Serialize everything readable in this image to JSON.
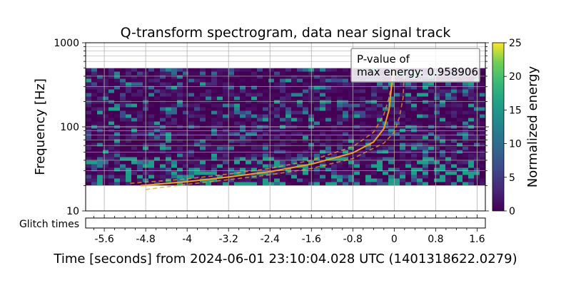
{
  "chart_data": {
    "type": "heatmap",
    "title": "Q-transform spectrogram, data near signal track",
    "xlabel": "Time [seconds] from 2024-06-01 23:10:04.028 UTC (1401318622.0279)",
    "ylabel": "Frequency [Hz]",
    "xlim": [
      -5.96,
      1.76
    ],
    "ylim": [
      10,
      1000
    ],
    "y_scale": "log",
    "grid": true,
    "x_ticks": [
      -5.6,
      -4.8,
      -4,
      -3.2,
      -2.4,
      -1.6,
      -0.8,
      0,
      0.8,
      1.6
    ],
    "x_tick_labels": [
      "-5.6",
      "-4.8",
      "-4",
      "-3.2",
      "-2.4",
      "-1.6",
      "-0.8",
      "0",
      "0.8",
      "1.6"
    ],
    "y_ticks": [
      10,
      100,
      1000
    ],
    "y_tick_labels": [
      "10",
      "100",
      "1000"
    ],
    "spectrogram": {
      "freq_range_hz": [
        20,
        500
      ],
      "colormap": "viridis",
      "background_energy": "low (dark purple)"
    },
    "colorbar": {
      "label": "Normalized energy",
      "range": [
        0,
        25
      ],
      "ticks": [
        0,
        5,
        10,
        15,
        20,
        25
      ],
      "tick_labels": [
        "0",
        "5",
        "10",
        "15",
        "20",
        "25"
      ]
    },
    "series": [
      {
        "style": "solid",
        "color": "#f0a020",
        "points": [
          [
            -4.9,
            20
          ],
          [
            -4,
            22.3
          ],
          [
            -3.2,
            25.3
          ],
          [
            -2.4,
            29.3
          ],
          [
            -1.6,
            36
          ],
          [
            -0.8,
            49
          ],
          [
            -0.4,
            66
          ],
          [
            -0.2,
            95
          ],
          [
            -0.1,
            160
          ],
          [
            -0.05,
            310
          ],
          [
            0,
            500
          ]
        ]
      },
      {
        "style": "dashed",
        "color": "#f0a020",
        "points": [
          [
            -5.1,
            21.3
          ],
          [
            -4,
            24
          ],
          [
            -3.2,
            27.4
          ],
          [
            -2.4,
            32
          ],
          [
            -1.6,
            40
          ],
          [
            -0.8,
            58
          ],
          [
            -0.4,
            86
          ],
          [
            -0.2,
            140
          ],
          [
            -0.1,
            220
          ],
          [
            0,
            500
          ]
        ]
      },
      {
        "style": "dashed",
        "color": "#f0a020",
        "points": [
          [
            -4.8,
            18
          ],
          [
            -4,
            20.7
          ],
          [
            -3.2,
            23.5
          ],
          [
            -2.4,
            26.9
          ],
          [
            -1.6,
            32
          ],
          [
            -0.8,
            42
          ],
          [
            -0.2,
            64
          ],
          [
            0,
            86
          ],
          [
            0.1,
            130
          ],
          [
            0.17,
            220
          ],
          [
            0.2,
            500
          ]
        ]
      }
    ],
    "annotation": "P-value of\nmax energy: 0.958906",
    "glitch_panel": {
      "label": "Glitch times",
      "glitches": []
    }
  }
}
